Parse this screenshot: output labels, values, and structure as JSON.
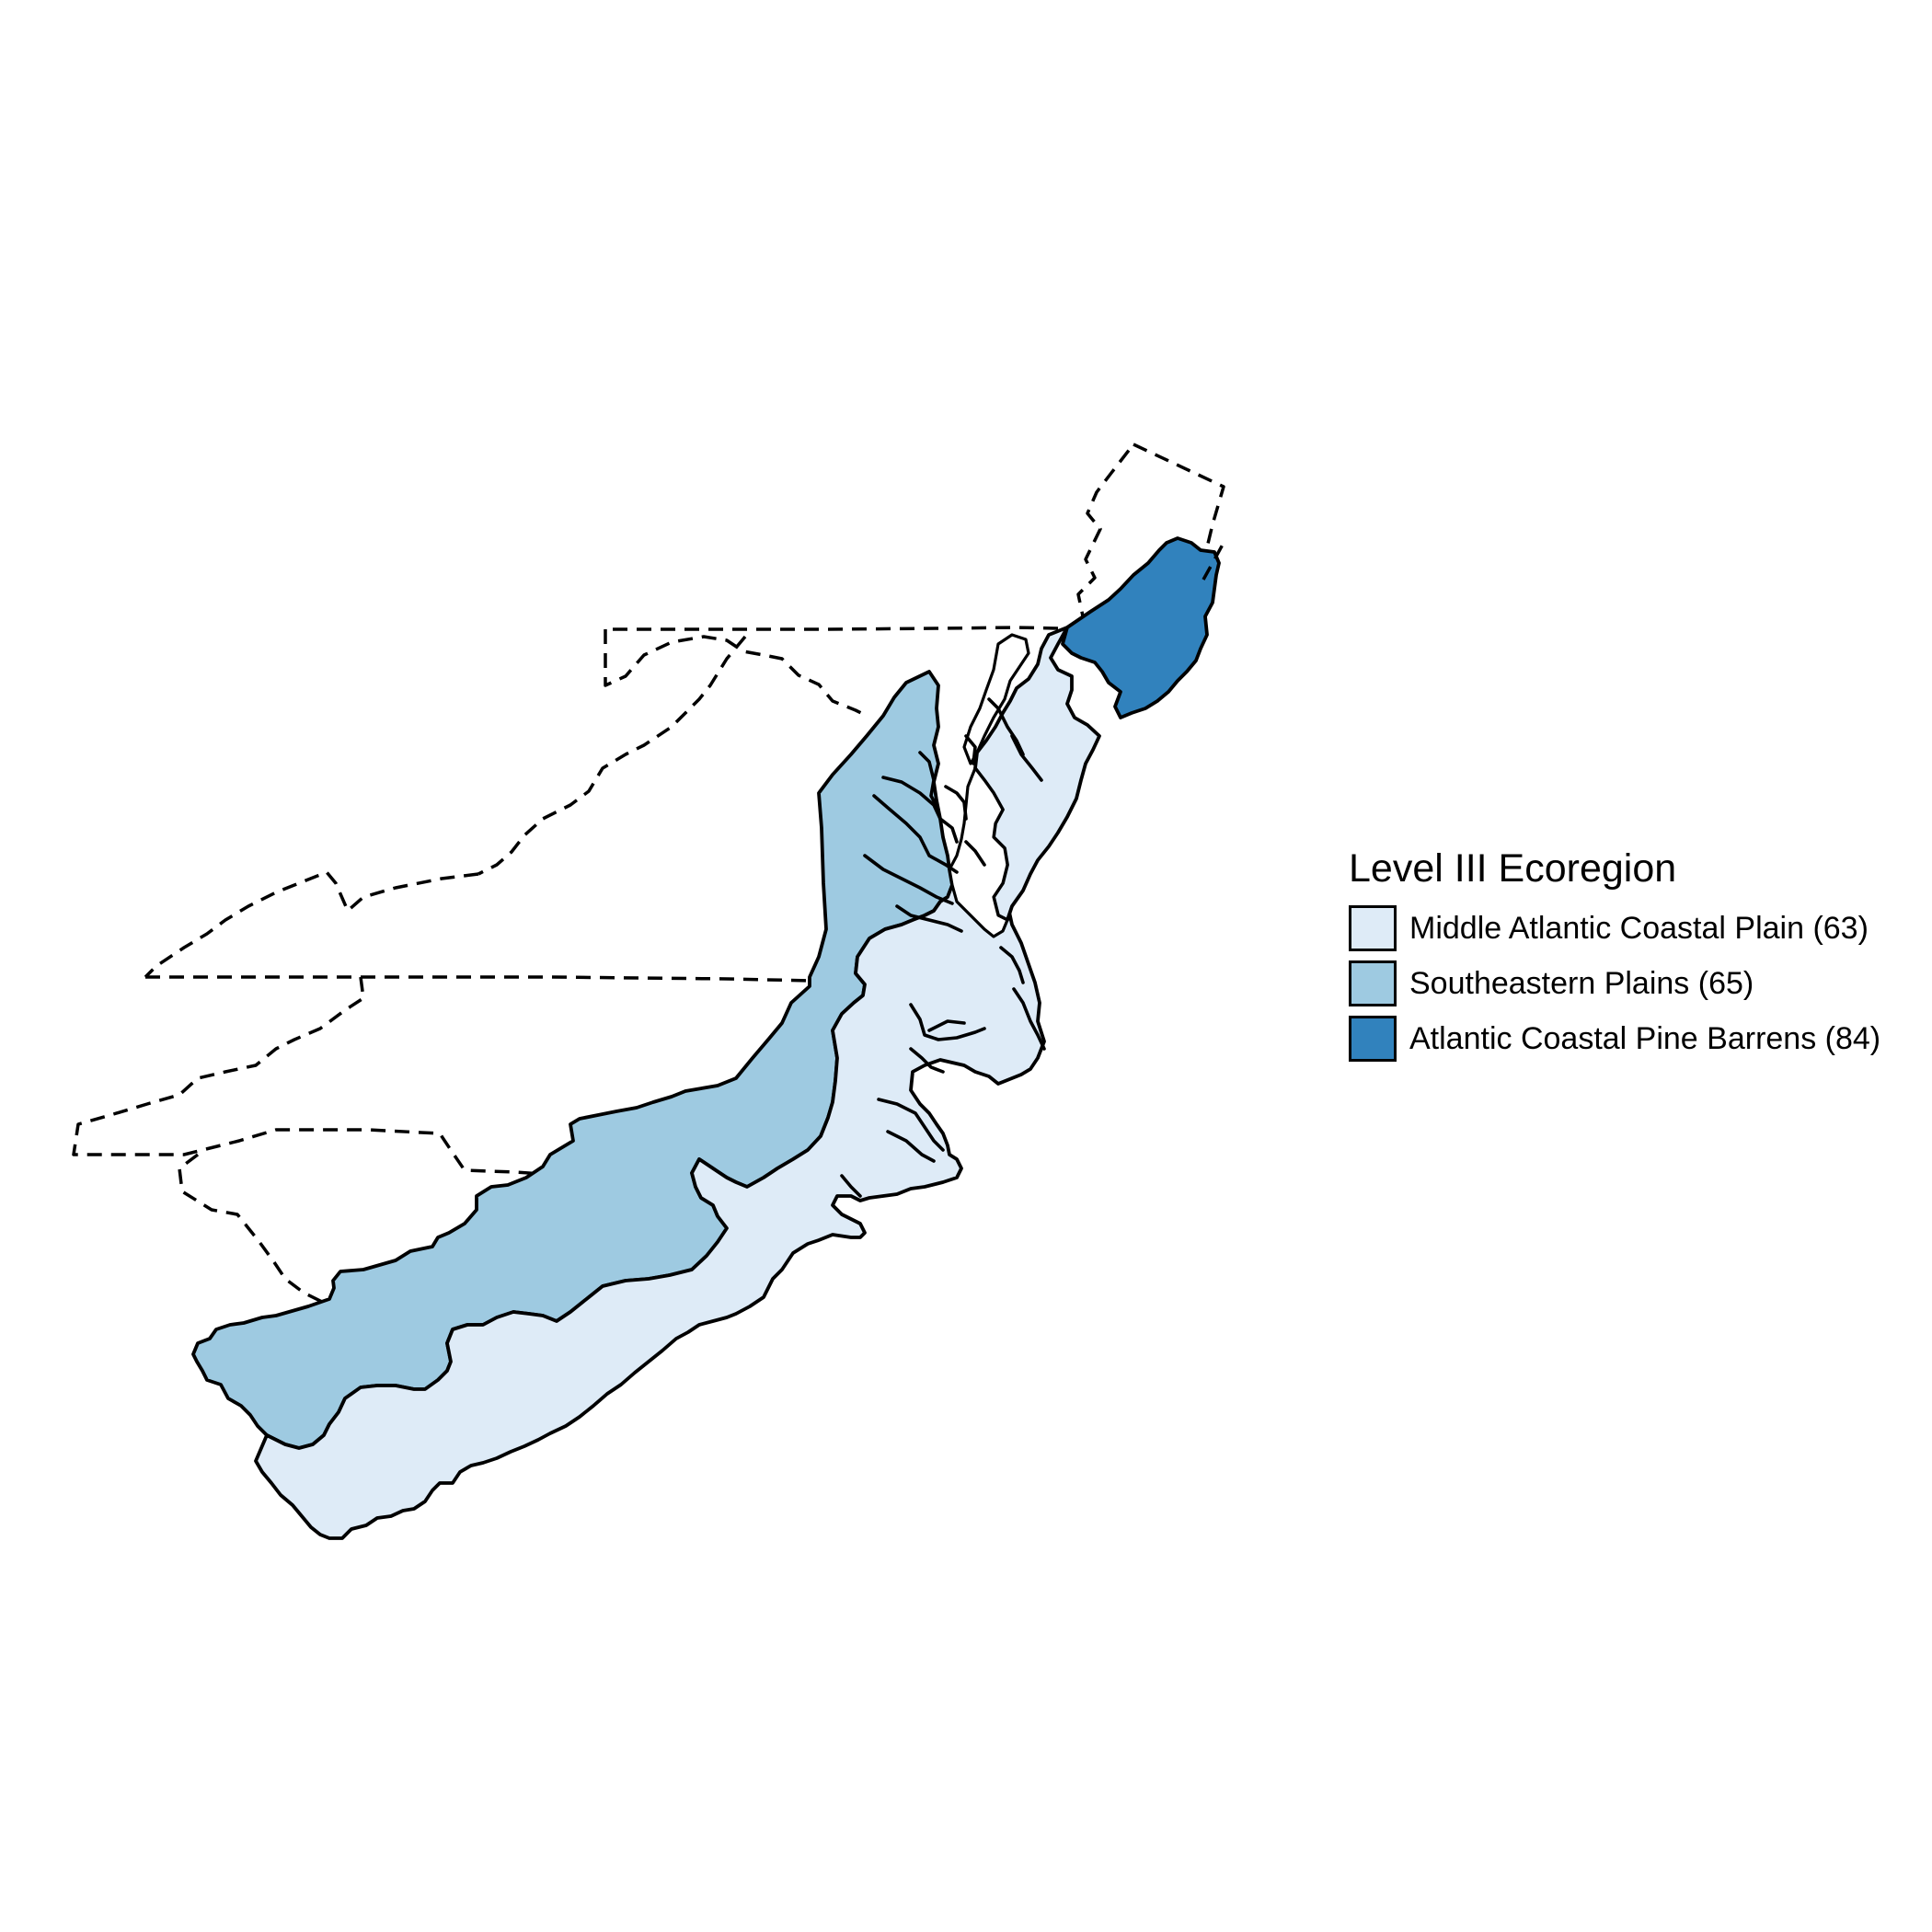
{
  "legend": {
    "title": "Level III Ecoregion",
    "items": [
      {
        "label": "Middle Atlantic Coastal Plain (63)",
        "color": "#deebf7"
      },
      {
        "label": "Southeastern Plains (65)",
        "color": "#9ecae1"
      },
      {
        "label": "Atlantic Coastal Pine Barrens (84)",
        "color": "#3182bd"
      }
    ]
  },
  "colors": {
    "mid_atlantic": "#deebf7",
    "southeastern_plains": "#9ecae1",
    "pine_barrens": "#3182bd",
    "boundary": "#000000"
  }
}
